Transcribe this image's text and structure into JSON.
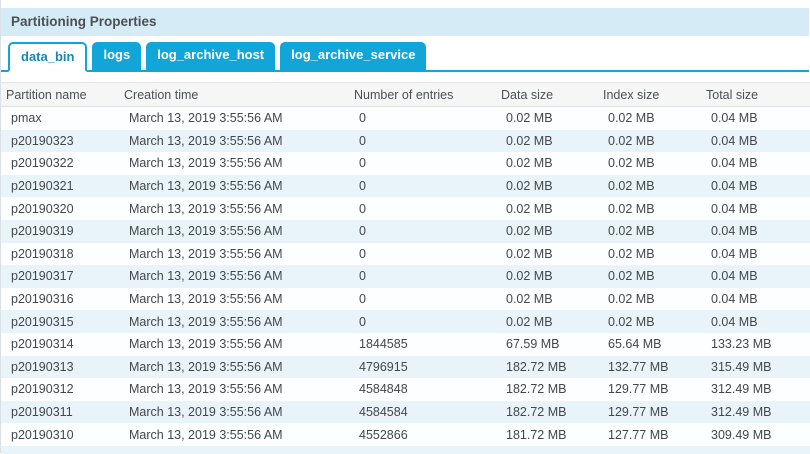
{
  "panel": {
    "title": "Partitioning Properties"
  },
  "tabs": [
    {
      "label": "data_bin",
      "active": true
    },
    {
      "label": "logs",
      "active": false
    },
    {
      "label": "log_archive_host",
      "active": false
    },
    {
      "label": "log_archive_service",
      "active": false
    }
  ],
  "table": {
    "columns": [
      {
        "label": "Partition name"
      },
      {
        "label": "Creation time"
      },
      {
        "label": "Number of entries"
      },
      {
        "label": "Data size"
      },
      {
        "label": "Index size"
      },
      {
        "label": "Total size"
      }
    ],
    "rows": [
      [
        "pmax",
        "March 13, 2019 3:55:56 AM",
        "0",
        "0.02 MB",
        "0.02 MB",
        "0.04 MB"
      ],
      [
        "p20190323",
        "March 13, 2019 3:55:56 AM",
        "0",
        "0.02 MB",
        "0.02 MB",
        "0.04 MB"
      ],
      [
        "p20190322",
        "March 13, 2019 3:55:56 AM",
        "0",
        "0.02 MB",
        "0.02 MB",
        "0.04 MB"
      ],
      [
        "p20190321",
        "March 13, 2019 3:55:56 AM",
        "0",
        "0.02 MB",
        "0.02 MB",
        "0.04 MB"
      ],
      [
        "p20190320",
        "March 13, 2019 3:55:56 AM",
        "0",
        "0.02 MB",
        "0.02 MB",
        "0.04 MB"
      ],
      [
        "p20190319",
        "March 13, 2019 3:55:56 AM",
        "0",
        "0.02 MB",
        "0.02 MB",
        "0.04 MB"
      ],
      [
        "p20190318",
        "March 13, 2019 3:55:56 AM",
        "0",
        "0.02 MB",
        "0.02 MB",
        "0.04 MB"
      ],
      [
        "p20190317",
        "March 13, 2019 3:55:56 AM",
        "0",
        "0.02 MB",
        "0.02 MB",
        "0.04 MB"
      ],
      [
        "p20190316",
        "March 13, 2019 3:55:56 AM",
        "0",
        "0.02 MB",
        "0.02 MB",
        "0.04 MB"
      ],
      [
        "p20190315",
        "March 13, 2019 3:55:56 AM",
        "0",
        "0.02 MB",
        "0.02 MB",
        "0.04 MB"
      ],
      [
        "p20190314",
        "March 13, 2019 3:55:56 AM",
        "1844585",
        "67.59 MB",
        "65.64 MB",
        "133.23 MB"
      ],
      [
        "p20190313",
        "March 13, 2019 3:55:56 AM",
        "4796915",
        "182.72 MB",
        "132.77 MB",
        "315.49 MB"
      ],
      [
        "p20190312",
        "March 13, 2019 3:55:56 AM",
        "4584848",
        "182.72 MB",
        "129.77 MB",
        "312.49 MB"
      ],
      [
        "p20190311",
        "March 13, 2019 3:55:56 AM",
        "4584584",
        "182.72 MB",
        "129.77 MB",
        "312.49 MB"
      ],
      [
        "p20190310",
        "March 13, 2019 3:55:56 AM",
        "4552866",
        "181.72 MB",
        "127.77 MB",
        "309.49 MB"
      ]
    ]
  },
  "colors": {
    "accent": "#12a5d8",
    "title_band_bg": "#d5ebf5",
    "active_tab_text": "#1587b9",
    "row_alt_bg": "#e9f4fa",
    "header_bg": "#f5f6f6"
  }
}
